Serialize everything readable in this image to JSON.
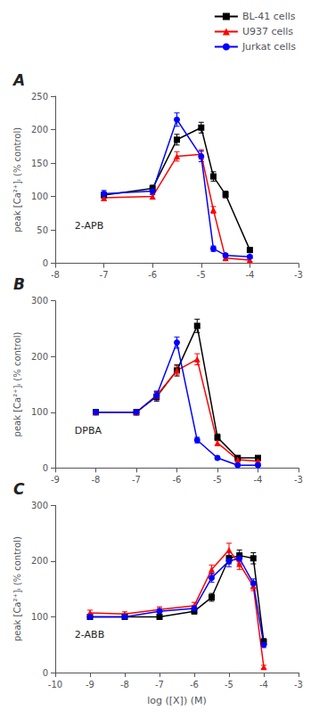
{
  "chart_data": [
    {
      "type": "line",
      "title": "A",
      "annotations": [
        "2-APB"
      ],
      "ylabel": "peak [Ca²⁺]ᵢ (% control)",
      "x": [
        -7,
        -6,
        -5.5,
        -5,
        -4.75,
        -4.5,
        -4
      ],
      "xlim": [
        -8,
        -3
      ],
      "xticks": [
        -8,
        -7,
        -6,
        -5,
        -4,
        -3
      ],
      "ylim": [
        0,
        250
      ],
      "yticks": [
        0,
        50,
        100,
        150,
        200,
        250
      ],
      "grid": false,
      "legend": "upper right",
      "series": [
        {
          "name": "BL-41 cells",
          "color": "black",
          "marker": "square",
          "values": [
            102,
            112,
            185,
            203,
            130,
            103,
            20
          ],
          "yerr": [
            4,
            5,
            8,
            8,
            7,
            5,
            3
          ]
        },
        {
          "name": "U937 cells",
          "color": "red",
          "marker": "triangle",
          "values": [
            98,
            100,
            160,
            163,
            80,
            8,
            5
          ],
          "yerr": [
            4,
            4,
            7,
            7,
            5,
            2,
            2
          ]
        },
        {
          "name": "Jurkat cells",
          "color": "blue",
          "marker": "circle",
          "values": [
            104,
            108,
            215,
            160,
            22,
            12,
            10
          ],
          "yerr": [
            5,
            5,
            10,
            8,
            4,
            3,
            2
          ]
        }
      ]
    },
    {
      "type": "line",
      "title": "B",
      "annotations": [
        "DPBA"
      ],
      "ylabel": "peak [Ca²⁺]ᵢ (% control)",
      "x": [
        -8,
        -7,
        -6.5,
        -6,
        -5.5,
        -5,
        -4.5,
        -4
      ],
      "xlim": [
        -9,
        -3
      ],
      "xticks": [
        -9,
        -8,
        -7,
        -6,
        -5,
        -4,
        -3
      ],
      "ylim": [
        0,
        300
      ],
      "yticks": [
        0,
        100,
        200,
        300
      ],
      "grid": false,
      "series": [
        {
          "name": "BL-41 cells",
          "color": "black",
          "marker": "square",
          "values": [
            100,
            100,
            128,
            175,
            255,
            55,
            18,
            18
          ],
          "yerr": [
            4,
            4,
            8,
            10,
            12,
            6,
            3,
            3
          ]
        },
        {
          "name": "U937 cells",
          "color": "red",
          "marker": "triangle",
          "values": [
            100,
            100,
            130,
            175,
            195,
            45,
            15,
            12
          ],
          "yerr": [
            4,
            5,
            7,
            8,
            10,
            5,
            3,
            2
          ]
        },
        {
          "name": "Jurkat cells",
          "color": "blue",
          "marker": "circle",
          "values": [
            100,
            100,
            130,
            225,
            50,
            18,
            5,
            5
          ],
          "yerr": [
            4,
            4,
            8,
            10,
            5,
            3,
            2,
            2
          ]
        }
      ]
    },
    {
      "type": "line",
      "title": "C",
      "annotations": [
        "2-ABB"
      ],
      "ylabel": "peak [Ca²⁺]ᵢ (% control)",
      "xlabel": "log ([X]) (M)",
      "x": [
        -9,
        -8,
        -7,
        -6,
        -5.5,
        -5,
        -4.7,
        -4.3,
        -4
      ],
      "xlim": [
        -10,
        -3
      ],
      "xticks": [
        -10,
        -9,
        -8,
        -7,
        -6,
        -5,
        -4,
        -3
      ],
      "ylim": [
        0,
        300
      ],
      "yticks": [
        0,
        100,
        200,
        300
      ],
      "grid": false,
      "series": [
        {
          "name": "BL-41 cells",
          "color": "black",
          "marker": "square",
          "values": [
            100,
            100,
            100,
            110,
            135,
            205,
            210,
            205,
            55
          ],
          "yerr": [
            4,
            4,
            4,
            5,
            7,
            10,
            10,
            10,
            6
          ]
        },
        {
          "name": "U937 cells",
          "color": "red",
          "marker": "triangle",
          "values": [
            107,
            105,
            113,
            120,
            185,
            220,
            195,
            155,
            10
          ],
          "yerr": [
            5,
            4,
            5,
            6,
            8,
            12,
            10,
            8,
            3
          ]
        },
        {
          "name": "Jurkat cells",
          "color": "blue",
          "marker": "circle",
          "values": [
            100,
            100,
            110,
            115,
            170,
            200,
            205,
            160,
            50
          ],
          "yerr": [
            4,
            4,
            5,
            5,
            8,
            10,
            10,
            8,
            5
          ]
        }
      ]
    }
  ]
}
